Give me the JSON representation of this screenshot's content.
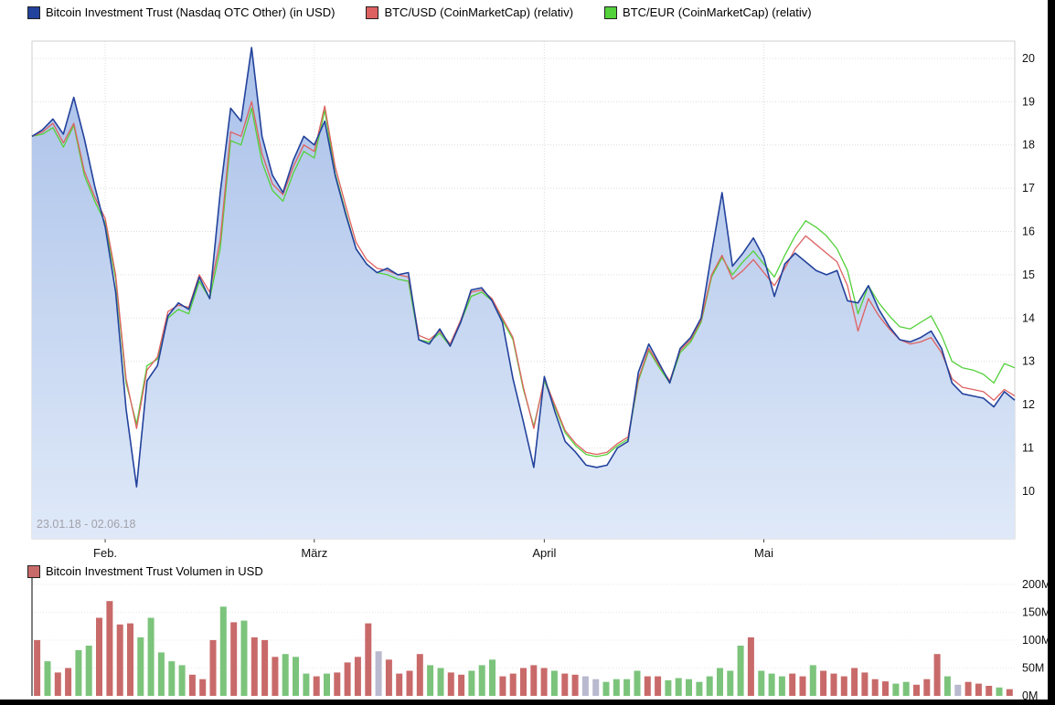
{
  "chart_data": [
    {
      "type": "line",
      "subtype": "area+line, relative comparison",
      "date_range": "23.01.18 - 02.06.18",
      "x_tick_labels": [
        "Feb.",
        "März",
        "April",
        "Mai"
      ],
      "x_tick_indices": [
        7,
        27,
        49,
        70
      ],
      "y_ticks": [
        10,
        11,
        12,
        13,
        14,
        15,
        16,
        17,
        18,
        19,
        20
      ],
      "ylim": [
        8.9,
        20.4
      ],
      "grid": true,
      "legend_position": "top",
      "axis_side": "right",
      "area_gradient_top": "#a9c0e9",
      "area_gradient_bottom": "#dfe9f8",
      "series": [
        {
          "name": "Bitcoin Investment Trust (Nasdaq OTC Other) (in USD)",
          "color": "#23429c",
          "fill": true,
          "values": [
            18.2,
            18.35,
            18.6,
            18.25,
            19.1,
            18.15,
            17.05,
            16.1,
            14.6,
            11.9,
            10.1,
            12.55,
            12.9,
            14.05,
            14.35,
            14.2,
            14.95,
            14.45,
            16.9,
            18.85,
            18.55,
            20.25,
            18.2,
            17.3,
            16.9,
            17.65,
            18.2,
            18.0,
            18.55,
            17.3,
            16.4,
            15.6,
            15.25,
            15.05,
            15.15,
            15.0,
            15.05,
            13.5,
            13.4,
            13.75,
            13.35,
            13.9,
            14.65,
            14.7,
            14.4,
            13.9,
            12.6,
            11.6,
            10.55,
            12.65,
            11.85,
            11.15,
            10.9,
            10.6,
            10.55,
            10.6,
            11.0,
            11.15,
            12.75,
            13.4,
            12.95,
            12.5,
            13.3,
            13.55,
            14.0,
            15.5,
            16.9,
            15.2,
            15.5,
            15.85,
            15.4,
            14.5,
            15.25,
            15.5,
            15.3,
            15.1,
            15.0,
            15.1,
            14.4,
            14.35,
            14.75,
            14.2,
            13.8,
            13.5,
            13.45,
            13.55,
            13.7,
            13.3,
            12.5,
            12.25,
            12.2,
            12.15,
            11.95,
            12.3,
            12.1
          ]
        },
        {
          "name": "BTC/USD (CoinMarketCap) (relativ)",
          "color": "#de6161",
          "fill": false,
          "values": [
            18.2,
            18.3,
            18.5,
            18.05,
            18.5,
            17.4,
            16.8,
            16.3,
            15.0,
            12.6,
            11.45,
            12.8,
            13.1,
            14.15,
            14.3,
            14.25,
            15.0,
            14.6,
            15.8,
            18.3,
            18.2,
            19.0,
            17.8,
            17.1,
            16.85,
            17.5,
            18.0,
            17.85,
            18.9,
            17.5,
            16.6,
            15.75,
            15.35,
            15.15,
            15.1,
            15.0,
            14.95,
            13.6,
            13.5,
            13.7,
            13.4,
            13.95,
            14.6,
            14.65,
            14.45,
            14.0,
            13.55,
            12.4,
            11.45,
            12.6,
            12.0,
            11.4,
            11.1,
            10.9,
            10.85,
            10.9,
            11.1,
            11.25,
            12.6,
            13.3,
            12.9,
            12.55,
            13.25,
            13.5,
            13.95,
            15.0,
            15.45,
            14.9,
            15.1,
            15.35,
            15.05,
            14.75,
            15.15,
            15.6,
            15.9,
            15.7,
            15.5,
            15.3,
            14.75,
            13.7,
            14.45,
            14.05,
            13.75,
            13.5,
            13.4,
            13.45,
            13.55,
            13.2,
            12.6,
            12.4,
            12.35,
            12.3,
            12.1,
            12.35,
            12.2
          ]
        },
        {
          "name": "BTC/EUR (CoinMarketCap) (relativ)",
          "color": "#53d13a",
          "fill": false,
          "values": [
            18.2,
            18.25,
            18.4,
            17.95,
            18.45,
            17.3,
            16.7,
            16.2,
            14.9,
            12.5,
            11.55,
            12.9,
            13.05,
            14.0,
            14.2,
            14.1,
            14.85,
            14.45,
            15.6,
            18.1,
            18.0,
            18.85,
            17.6,
            16.95,
            16.7,
            17.35,
            17.85,
            17.7,
            18.8,
            17.35,
            16.45,
            15.6,
            15.25,
            15.05,
            15.0,
            14.9,
            14.85,
            13.5,
            13.45,
            13.65,
            13.35,
            13.9,
            14.5,
            14.6,
            14.4,
            13.95,
            13.5,
            12.35,
            11.5,
            12.55,
            11.95,
            11.35,
            11.05,
            10.85,
            10.8,
            10.85,
            11.05,
            11.2,
            12.55,
            13.25,
            12.85,
            12.5,
            13.2,
            13.45,
            13.9,
            14.95,
            15.4,
            15.0,
            15.3,
            15.55,
            15.25,
            14.95,
            15.45,
            15.9,
            16.25,
            16.1,
            15.9,
            15.6,
            15.1,
            14.1,
            14.75,
            14.35,
            14.05,
            13.8,
            13.75,
            13.9,
            14.05,
            13.6,
            13.0,
            12.85,
            12.8,
            12.7,
            12.5,
            12.95,
            12.85
          ]
        }
      ]
    },
    {
      "type": "bar",
      "title": "Bitcoin Investment Trust Volumen in USD",
      "unit": "M USD",
      "y_ticks": [
        0,
        50,
        100,
        150,
        200
      ],
      "y_tick_labels": [
        "0M",
        "50M",
        "100M",
        "150M",
        "200M"
      ],
      "ylim": [
        0,
        208
      ],
      "axis_side": "right",
      "legend_color": "#c96a6a",
      "color_map": {
        "r": "#c96a6a",
        "g": "#7cc47c",
        "y": "#b9b9cf"
      },
      "colors": "rgrrggrrrrgggggrrrgrgrrrgggrgrrrryrrrrggrrgggrrrrrgrryyggggrrggggggggrgggrrgrrrrrrrggrrrgyrrrgr",
      "values": [
        100,
        62,
        42,
        50,
        82,
        90,
        140,
        170,
        128,
        130,
        105,
        140,
        78,
        62,
        55,
        38,
        30,
        100,
        160,
        132,
        135,
        105,
        100,
        70,
        75,
        70,
        40,
        35,
        40,
        42,
        60,
        70,
        130,
        80,
        65,
        40,
        45,
        75,
        55,
        50,
        42,
        38,
        45,
        55,
        65,
        35,
        40,
        50,
        55,
        50,
        45,
        40,
        38,
        35,
        30,
        25,
        30,
        30,
        45,
        35,
        35,
        28,
        32,
        30,
        25,
        35,
        50,
        45,
        90,
        105,
        45,
        40,
        35,
        40,
        35,
        55,
        45,
        40,
        35,
        50,
        42,
        30,
        26,
        22,
        25,
        20,
        30,
        75,
        35,
        20,
        25,
        22,
        18,
        15,
        12
      ]
    }
  ]
}
